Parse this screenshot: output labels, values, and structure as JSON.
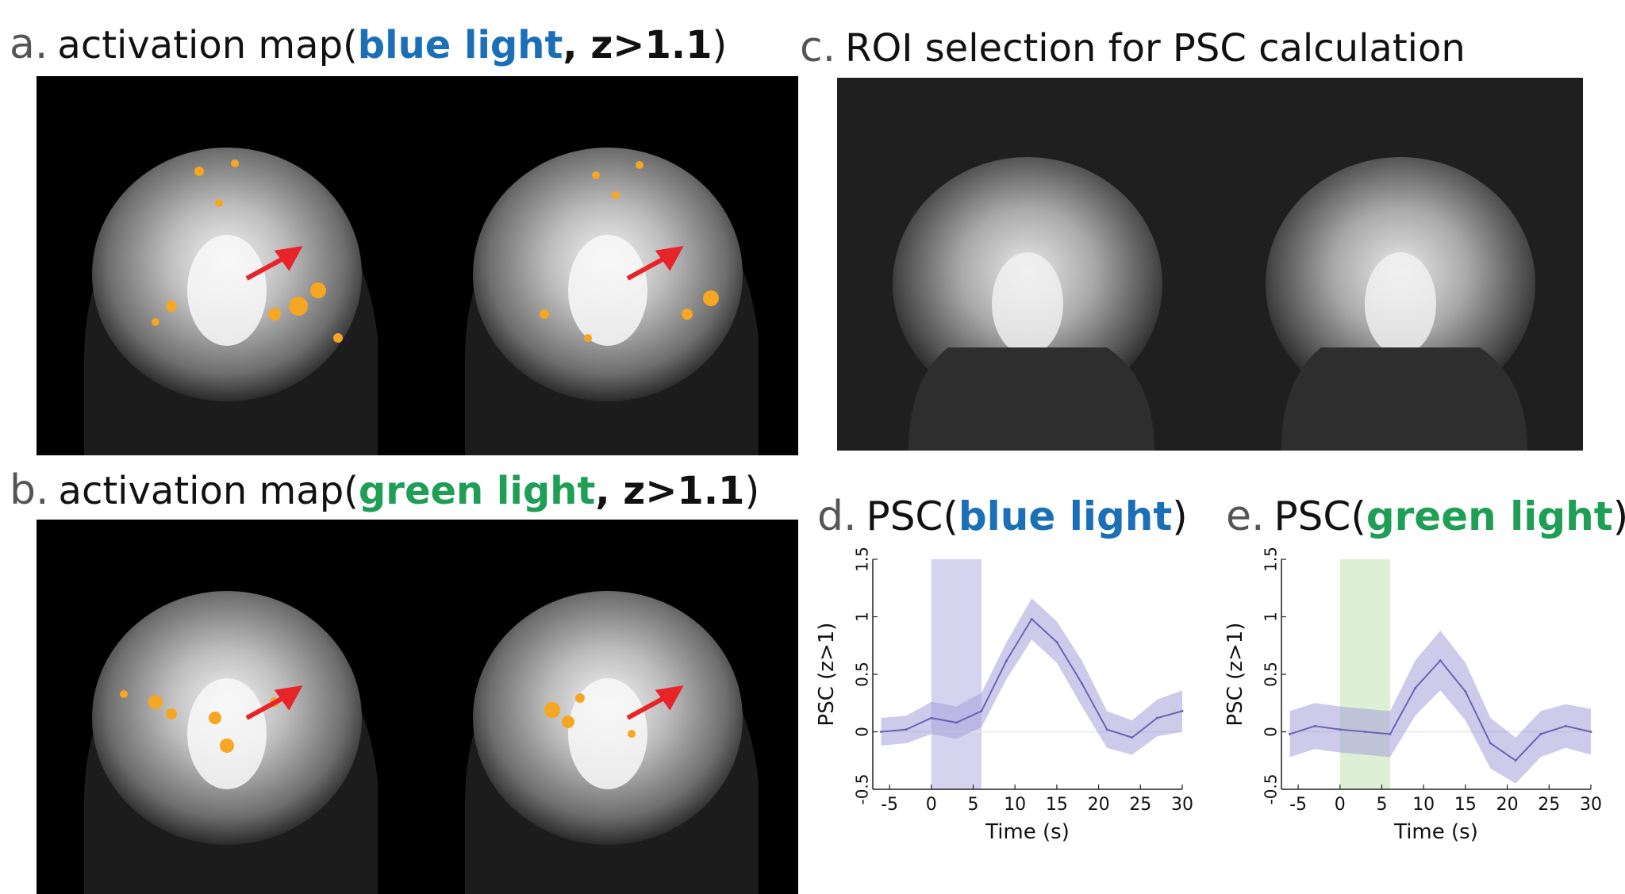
{
  "panels": {
    "a": {
      "letter": "a.",
      "prefix": "activation map(",
      "highlight": "blue light",
      "suffix_bold": ", z>1.1",
      "close": ")"
    },
    "b": {
      "letter": "b.",
      "prefix": "activation map(",
      "highlight": "green light",
      "suffix_bold": ", z>1.1",
      "close": ")"
    },
    "c": {
      "letter": "c.",
      "title": "ROI selection for PSC calculation"
    },
    "d": {
      "letter": "d.",
      "prefix": "PSC(",
      "highlight": "blue light",
      "close": ")"
    },
    "e": {
      "letter": "e.",
      "prefix": "PSC(",
      "highlight": "green light",
      "close": ")"
    }
  },
  "colors": {
    "blue_text": "#1a6fb7",
    "green_text": "#1f9e55",
    "activation": "#f5a623",
    "arrow": "#e8242a",
    "line": "#6b63b5",
    "band": "#a59fd8",
    "stim_blue": "#cfcbec",
    "stim_green": "#d7edcf"
  },
  "chart_data": [
    {
      "type": "line",
      "panel": "d",
      "xlabel": "Time (s)",
      "ylabel": "PSC (z>1)",
      "xlim": [
        -7,
        30
      ],
      "ylim": [
        -0.5,
        1.5
      ],
      "xticks": [
        "-5",
        "0",
        "5",
        "10",
        "15",
        "20",
        "25",
        "30"
      ],
      "yticks": [
        "-0.5",
        "0",
        "0.5",
        "1",
        "1.5"
      ],
      "stimulus_window": [
        0,
        6
      ],
      "x": [
        -6,
        -3,
        0,
        3,
        6,
        9,
        12,
        15,
        18,
        21,
        24,
        27,
        30
      ],
      "series": [
        {
          "values": [
            0.0,
            0.02,
            0.12,
            0.08,
            0.18,
            0.62,
            0.98,
            0.78,
            0.42,
            0.02,
            -0.05,
            0.12,
            0.18
          ],
          "lower": [
            -0.12,
            -0.1,
            -0.02,
            -0.06,
            0.04,
            0.46,
            0.8,
            0.6,
            0.22,
            -0.14,
            -0.2,
            -0.04,
            0.0
          ],
          "upper": [
            0.12,
            0.14,
            0.26,
            0.22,
            0.34,
            0.78,
            1.16,
            0.96,
            0.62,
            0.18,
            0.1,
            0.28,
            0.36
          ]
        }
      ]
    },
    {
      "type": "line",
      "panel": "e",
      "xlabel": "Time (s)",
      "ylabel": "PSC (z>1)",
      "xlim": [
        -7,
        30
      ],
      "ylim": [
        -0.5,
        1.5
      ],
      "xticks": [
        "-5",
        "0",
        "5",
        "10",
        "15",
        "20",
        "25",
        "30"
      ],
      "yticks": [
        "-0.5",
        "0",
        "0.5",
        "1",
        "1.5"
      ],
      "stimulus_window": [
        0,
        6
      ],
      "x": [
        -6,
        -3,
        0,
        3,
        6,
        9,
        12,
        15,
        18,
        21,
        24,
        27,
        30
      ],
      "series": [
        {
          "values": [
            -0.02,
            0.05,
            0.02,
            0.0,
            -0.02,
            0.38,
            0.62,
            0.35,
            -0.1,
            -0.25,
            -0.02,
            0.05,
            0.0
          ],
          "lower": [
            -0.22,
            -0.15,
            -0.18,
            -0.2,
            -0.22,
            0.14,
            0.36,
            0.1,
            -0.32,
            -0.45,
            -0.22,
            -0.14,
            -0.2
          ],
          "upper": [
            0.18,
            0.25,
            0.22,
            0.2,
            0.18,
            0.62,
            0.88,
            0.6,
            0.12,
            -0.05,
            0.18,
            0.24,
            0.2
          ]
        }
      ]
    }
  ]
}
